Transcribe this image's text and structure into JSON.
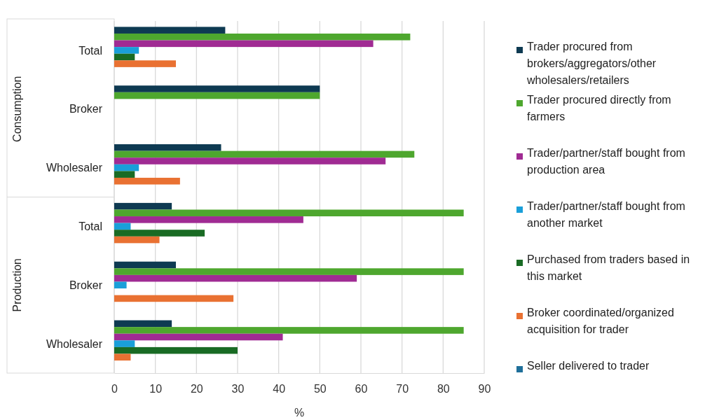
{
  "chart_data": {
    "type": "bar",
    "orientation": "horizontal",
    "xlabel": "%",
    "categories": [
      "Total",
      "Broker",
      "Wholesaler",
      "Total",
      "Broker",
      "Wholesaler"
    ],
    "annotations": [
      "Consumption",
      "Production"
    ],
    "xlim": [
      0,
      90
    ],
    "xticks": [
      0,
      10,
      20,
      30,
      40,
      50,
      60,
      70,
      80,
      90
    ],
    "grid": "x",
    "legend": "right",
    "series": [
      {
        "name": "Trader procured from brokers/aggregators/other wholesalers/retailers",
        "color": "#0e3a52",
        "values": [
          27,
          50,
          26,
          14,
          15,
          14
        ]
      },
      {
        "name": "Trader procured directly from farmers",
        "color": "#4ea72e",
        "values": [
          72,
          50,
          73,
          85,
          85,
          85
        ]
      },
      {
        "name": "Trader/partner/staff bought from production area",
        "color": "#a02b93",
        "values": [
          63,
          null,
          66,
          46,
          59,
          41
        ]
      },
      {
        "name": "Trader/partner/staff bought from another market",
        "color": "#1a9fd9",
        "values": [
          6,
          null,
          6,
          4,
          3,
          5
        ]
      },
      {
        "name": "Purchased from traders based in this market",
        "color": "#196b24",
        "values": [
          5,
          null,
          5,
          22,
          null,
          30
        ]
      },
      {
        "name": "Broker coordinated/organized acquisition for trader",
        "color": "#e97132",
        "values": [
          15,
          null,
          16,
          11,
          29,
          4
        ]
      },
      {
        "name": "Seller delivered to trader",
        "color": "#1f6f9a",
        "values": [
          null,
          null,
          null,
          null,
          null,
          null
        ]
      }
    ]
  }
}
